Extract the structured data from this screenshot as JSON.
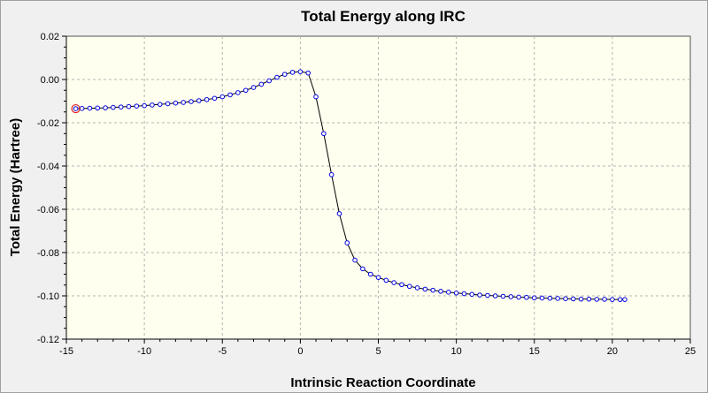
{
  "chart_data": {
    "type": "scatter",
    "title": "Total Energy along IRC",
    "xlabel": "Intrinsic Reaction Coordinate",
    "ylabel": "Total Energy (Hartree)",
    "xlim": [
      -15,
      25
    ],
    "ylim": [
      -0.12,
      0.02
    ],
    "xticks": [
      -15,
      -10,
      -5,
      0,
      5,
      10,
      15,
      20,
      25
    ],
    "yticks": [
      -0.12,
      -0.1,
      -0.08,
      -0.06,
      -0.04,
      -0.02,
      0.0,
      0.02
    ],
    "xtick_labels": [
      "-15",
      "-10",
      "-5",
      "0",
      "5",
      "10",
      "15",
      "20",
      "25"
    ],
    "ytick_labels": [
      "-0.12",
      "-0.10",
      "-0.08",
      "-0.06",
      "-0.04",
      "-0.02",
      "0.00",
      "0.02"
    ],
    "grid": true,
    "point_color": "#0000e0",
    "line_color": "#000000",
    "highlight_color": "#e02020",
    "highlight_index": 0,
    "series": [
      {
        "x": [
          -14.4,
          -14.0,
          -13.5,
          -13.0,
          -12.5,
          -12.0,
          -11.5,
          -11.0,
          -10.5,
          -10.0,
          -9.5,
          -9.0,
          -8.5,
          -8.0,
          -7.5,
          -7.0,
          -6.5,
          -6.0,
          -5.5,
          -5.0,
          -4.5,
          -4.0,
          -3.5,
          -3.0,
          -2.5,
          -2.0,
          -1.5,
          -1.0,
          -0.5,
          0.0,
          0.5,
          1.0,
          1.5,
          2.0,
          2.5,
          3.0,
          3.5,
          4.0,
          4.5,
          5.0,
          5.5,
          6.0,
          6.5,
          7.0,
          7.5,
          8.0,
          8.5,
          9.0,
          9.5,
          10.0,
          10.5,
          11.0,
          11.5,
          12.0,
          12.5,
          13.0,
          13.5,
          14.0,
          14.5,
          15.0,
          15.5,
          16.0,
          16.5,
          17.0,
          17.5,
          18.0,
          18.5,
          19.0,
          19.5,
          20.0,
          20.5,
          20.8
        ],
        "y": [
          -0.0135,
          -0.0134,
          -0.0133,
          -0.0132,
          -0.0131,
          -0.0129,
          -0.0127,
          -0.0125,
          -0.0123,
          -0.0121,
          -0.0118,
          -0.0115,
          -0.0112,
          -0.0109,
          -0.0106,
          -0.0102,
          -0.0098,
          -0.0093,
          -0.0087,
          -0.008,
          -0.0071,
          -0.0061,
          -0.005,
          -0.0037,
          -0.0022,
          -0.0006,
          0.001,
          0.0024,
          0.0033,
          0.0036,
          0.003,
          -0.008,
          -0.025,
          -0.044,
          -0.062,
          -0.0755,
          -0.0835,
          -0.0875,
          -0.09,
          -0.0915,
          -0.0928,
          -0.0939,
          -0.0948,
          -0.0956,
          -0.0963,
          -0.0969,
          -0.0974,
          -0.0979,
          -0.0983,
          -0.0987,
          -0.099,
          -0.0993,
          -0.0996,
          -0.0998,
          -0.1,
          -0.1002,
          -0.1004,
          -0.1006,
          -0.1007,
          -0.1009,
          -0.101,
          -0.1011,
          -0.1012,
          -0.1013,
          -0.1014,
          -0.1015,
          -0.1015,
          -0.1016,
          -0.1016,
          -0.1017,
          -0.1017,
          -0.1017
        ]
      }
    ]
  }
}
